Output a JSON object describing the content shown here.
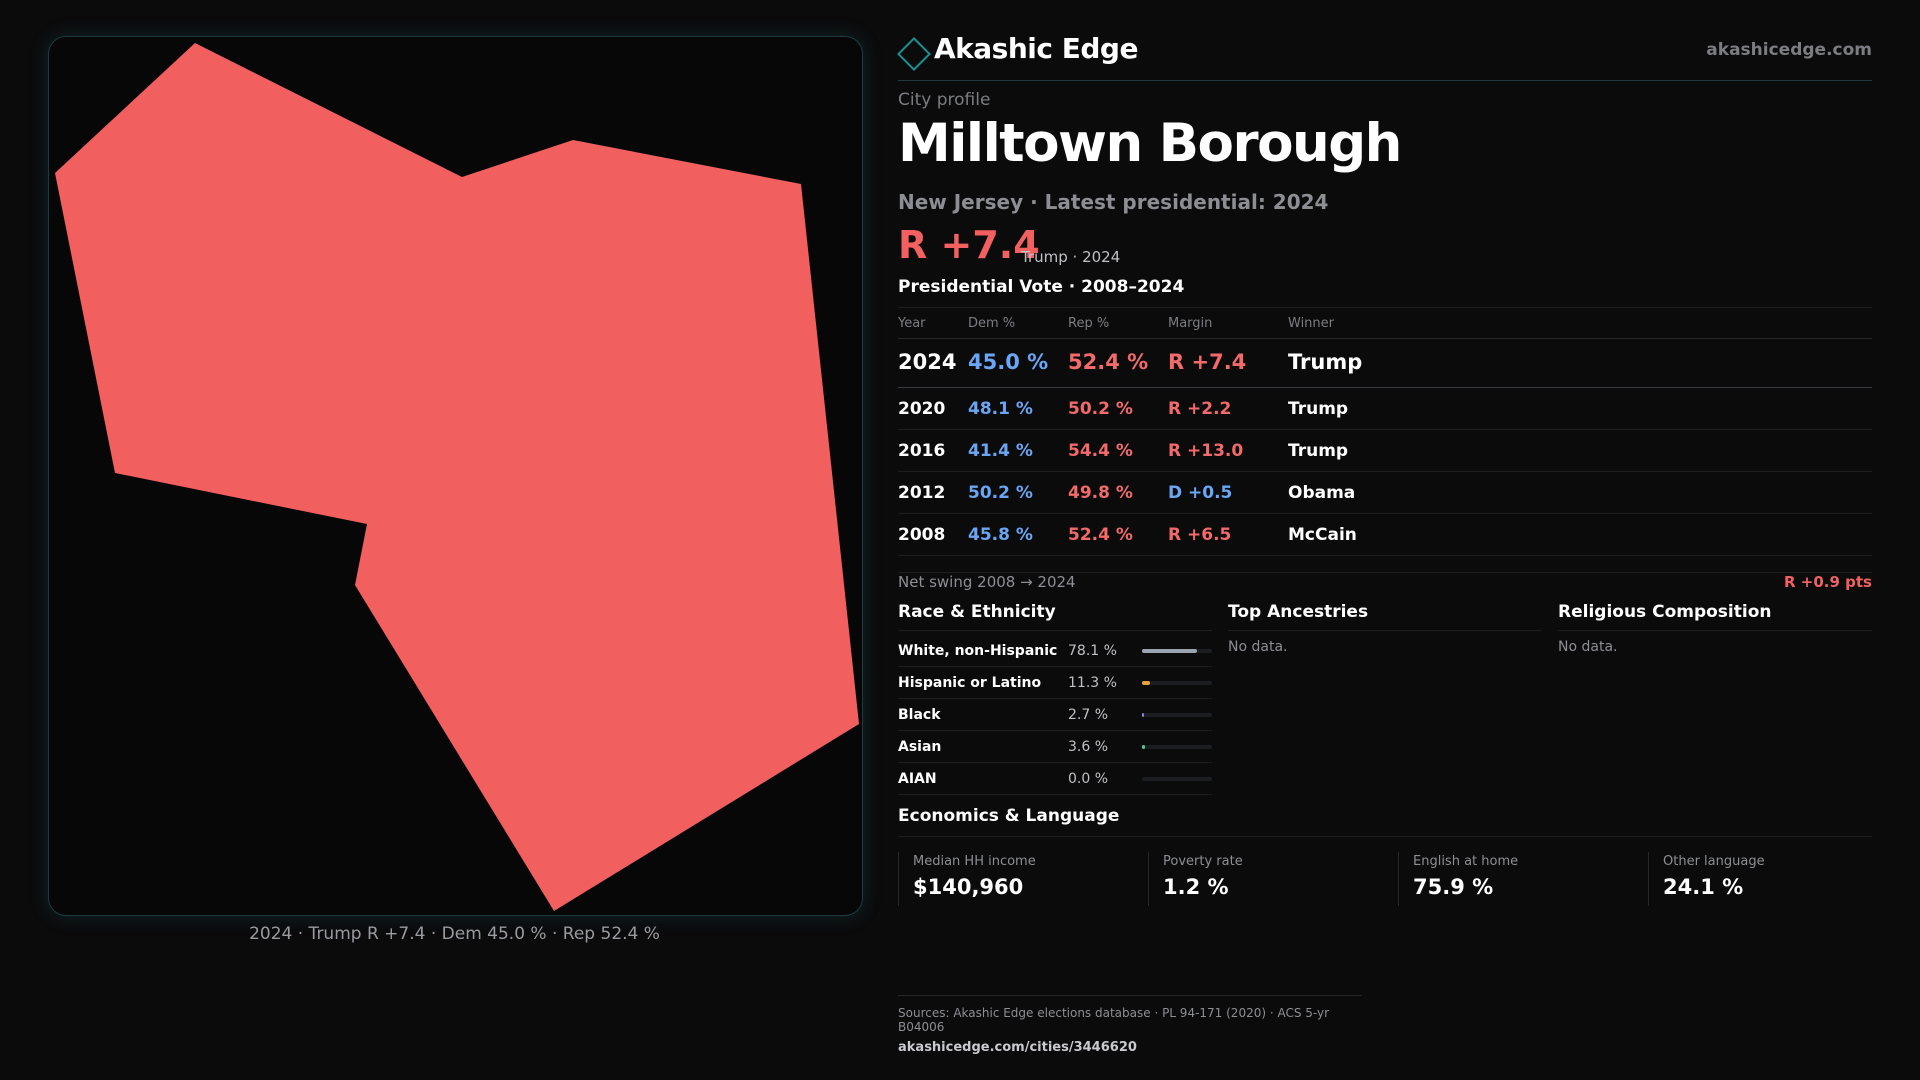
{
  "map": {
    "fill_color": "#f25f5f",
    "caption": "2024 · Trump R +7.4 · Dem 45.0 % · Rep 52.4 %"
  },
  "brand": {
    "name": "Akashic Edge",
    "site": "akashicedge.com",
    "accent": "#1a8f94"
  },
  "profile": {
    "eyebrow": "City profile",
    "title": "Milltown Borough",
    "subtitle": "New Jersey · Latest presidential: 2024",
    "margin": "R +7.4",
    "margin_note": "Trump · 2024"
  },
  "presidential": {
    "title": "Presidential Vote · 2008–2024",
    "headers": {
      "year": "Year",
      "dem": "Dem %",
      "rep": "Rep %",
      "margin": "Margin",
      "winner": "Winner"
    },
    "rows": [
      {
        "year": "2024",
        "dem": "45.0 %",
        "rep": "52.4 %",
        "margin": "R +7.4",
        "winner": "Trump"
      },
      {
        "year": "2020",
        "dem": "48.1 %",
        "rep": "50.2 %",
        "margin": "R +2.2",
        "winner": "Trump"
      },
      {
        "year": "2016",
        "dem": "41.4 %",
        "rep": "54.4 %",
        "margin": "R +13.0",
        "winner": "Trump"
      },
      {
        "year": "2012",
        "dem": "50.2 %",
        "rep": "49.8 %",
        "margin": "D +0.5",
        "winner": "Obama"
      },
      {
        "year": "2008",
        "dem": "45.8 %",
        "rep": "52.4 %",
        "margin": "R +6.5",
        "winner": "McCain"
      }
    ],
    "swing_label": "Net swing 2008 → 2024",
    "swing_value": "R +0.9 pts"
  },
  "race": {
    "title": "Race & Ethnicity",
    "rows": [
      {
        "name": "White, non-Hispanic",
        "pct": "78.1 %",
        "value": 78.1,
        "color": "#9aa3b2"
      },
      {
        "name": "Hispanic or Latino",
        "pct": "11.3 %",
        "value": 11.3,
        "color": "#e8a23a"
      },
      {
        "name": "Black",
        "pct": "2.7 %",
        "value": 2.7,
        "color": "#8a7cf0"
      },
      {
        "name": "Asian",
        "pct": "3.6 %",
        "value": 3.6,
        "color": "#3fcf8e"
      },
      {
        "name": "AIAN",
        "pct": "0.0 %",
        "value": 0.0,
        "color": "#c46be0"
      }
    ]
  },
  "ancestries": {
    "title": "Top Ancestries",
    "empty": "No data."
  },
  "religion": {
    "title": "Religious Composition",
    "empty": "No data."
  },
  "economics": {
    "title": "Economics & Language",
    "cells": [
      {
        "label": "Median HH income",
        "value": "$140,960"
      },
      {
        "label": "Poverty rate",
        "value": "1.2 %"
      },
      {
        "label": "English at home",
        "value": "75.9 %"
      },
      {
        "label": "Other language",
        "value": "24.1 %"
      }
    ]
  },
  "sources": {
    "text": "Sources: Akashic Edge elections database · PL 94-171 (2020) · ACS 5-yr B04006",
    "url": "akashicedge.com/cities/3446620"
  }
}
